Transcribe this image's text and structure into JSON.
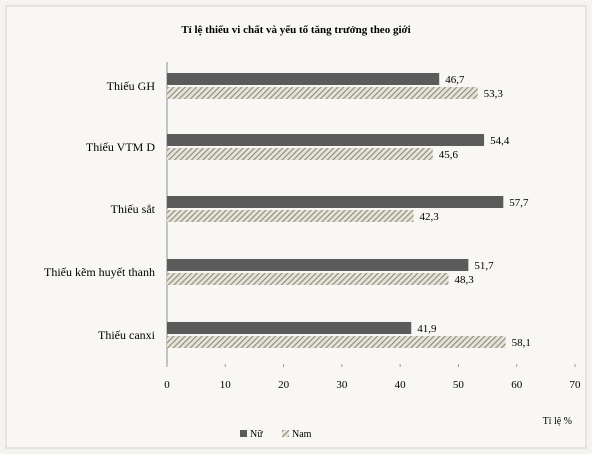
{
  "chart_data": {
    "type": "bar",
    "orientation": "horizontal",
    "title": "Tỉ lệ thiếu vi chất và yếu tố tăng trưởng theo giới",
    "categories": [
      "Thiếu GH",
      "Thiếu VTM D",
      "Thiếu sắt",
      "Thiếu kẽm huyết thanh",
      "Thiếu canxi"
    ],
    "series": [
      {
        "name": "Nữ",
        "values": [
          46.7,
          54.4,
          57.7,
          51.7,
          41.9
        ],
        "value_labels": [
          "46,7",
          "54,4",
          "57,7",
          "51,7",
          "41,9"
        ],
        "color": "#5b5b5b",
        "pattern": "solid"
      },
      {
        "name": "Nam",
        "values": [
          53.3,
          45.6,
          42.3,
          48.3,
          58.1
        ],
        "value_labels": [
          "53,3",
          "45,6",
          "42,3",
          "48,3",
          "58,1"
        ],
        "color": "#9a9a8c",
        "pattern": "diagonal-hatch"
      }
    ],
    "xlabel": "Tỉ lệ %",
    "xlim": [
      0,
      70
    ],
    "xticks": [
      0,
      10,
      20,
      30,
      40,
      50,
      60,
      70
    ],
    "xtick_labels": [
      "0",
      "10",
      "20",
      "30",
      "40",
      "50",
      "60",
      "70"
    ],
    "grid": false,
    "legend_position": "bottom-center"
  }
}
